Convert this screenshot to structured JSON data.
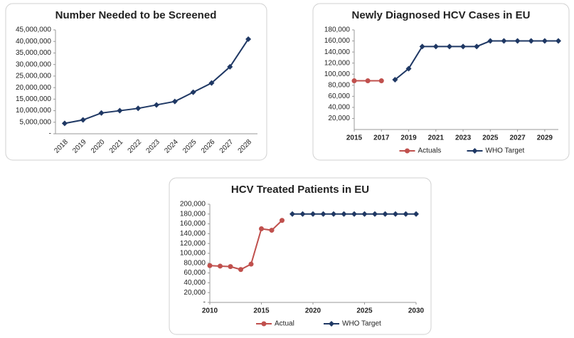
{
  "chart_data": [
    {
      "type": "line",
      "title": "Number Needed to be Screened",
      "categories": [
        "2018",
        "2019",
        "2020",
        "2021",
        "2022",
        "2023",
        "2024",
        "2025",
        "2026",
        "2027",
        "2028"
      ],
      "values": [
        4500000,
        6000000,
        9000000,
        10000000,
        11000000,
        12500000,
        14000000,
        18000000,
        22000000,
        29000000,
        41000000
      ],
      "color": "#1f3864",
      "ylim": [
        0,
        45000000
      ],
      "yticks": [
        {
          "value": 0,
          "label": "-"
        },
        {
          "value": 5000000,
          "label": "5,000,000"
        },
        {
          "value": 10000000,
          "label": "10,000,000"
        },
        {
          "value": 15000000,
          "label": "15,000,000"
        },
        {
          "value": 20000000,
          "label": "20,000,000"
        },
        {
          "value": 25000000,
          "label": "25,000,000"
        },
        {
          "value": 30000000,
          "label": "30,000,000"
        },
        {
          "value": 35000000,
          "label": "35,000,000"
        },
        {
          "value": 40000000,
          "label": "40,000,000"
        },
        {
          "value": 45000000,
          "label": "45,000,000"
        }
      ]
    },
    {
      "type": "line",
      "title": "Newly Diagnosed HCV Cases in EU",
      "series": [
        {
          "name": "Actuals",
          "color": "#c0504d",
          "marker": "circle",
          "x": [
            2015,
            2016,
            2017
          ],
          "values": [
            88000,
            88000,
            88000
          ]
        },
        {
          "name": "WHO Target",
          "color": "#1f3864",
          "marker": "diamond",
          "x": [
            2018,
            2019,
            2020,
            2021,
            2022,
            2023,
            2024,
            2025,
            2026,
            2027,
            2028,
            2029,
            2030
          ],
          "values": [
            90000,
            110000,
            150000,
            150000,
            150000,
            150000,
            150000,
            160000,
            160000,
            160000,
            160000,
            160000,
            160000
          ]
        }
      ],
      "xlim": [
        2015,
        2030
      ],
      "xticks": [
        2015,
        2017,
        2019,
        2021,
        2023,
        2025,
        2027,
        2029
      ],
      "ylim": [
        0,
        180000
      ],
      "yticks": [
        {
          "value": 20000,
          "label": "20,000"
        },
        {
          "value": 40000,
          "label": "40,000"
        },
        {
          "value": 60000,
          "label": "60,000"
        },
        {
          "value": 80000,
          "label": "80,000"
        },
        {
          "value": 100000,
          "label": "100,000"
        },
        {
          "value": 120000,
          "label": "120,000"
        },
        {
          "value": 140000,
          "label": "140,000"
        },
        {
          "value": 160000,
          "label": "160,000"
        },
        {
          "value": 180000,
          "label": "180,000"
        }
      ],
      "legend": "bottom"
    },
    {
      "type": "line",
      "title": "HCV Treated Patients in EU",
      "series": [
        {
          "name": "Actual",
          "color": "#c0504d",
          "marker": "circle",
          "x": [
            2010,
            2011,
            2012,
            2013,
            2014,
            2015,
            2016,
            2017
          ],
          "values": [
            75000,
            74000,
            73000,
            67000,
            78000,
            150000,
            147000,
            167000
          ]
        },
        {
          "name": "WHO Target",
          "color": "#1f3864",
          "marker": "diamond",
          "x": [
            2018,
            2019,
            2020,
            2021,
            2022,
            2023,
            2024,
            2025,
            2026,
            2027,
            2028,
            2029,
            2030
          ],
          "values": [
            180000,
            180000,
            180000,
            180000,
            180000,
            180000,
            180000,
            180000,
            180000,
            180000,
            180000,
            180000,
            180000
          ]
        }
      ],
      "xlim": [
        2010,
        2030
      ],
      "xticks": [
        2010,
        2015,
        2020,
        2025,
        2030
      ],
      "ylim": [
        0,
        200000
      ],
      "yticks": [
        {
          "value": 0,
          "label": "-"
        },
        {
          "value": 20000,
          "label": "20,000"
        },
        {
          "value": 40000,
          "label": "40,000"
        },
        {
          "value": 60000,
          "label": "60,000"
        },
        {
          "value": 80000,
          "label": "80,000"
        },
        {
          "value": 100000,
          "label": "100,000"
        },
        {
          "value": 120000,
          "label": "120,000"
        },
        {
          "value": 140000,
          "label": "140,000"
        },
        {
          "value": 160000,
          "label": "160,000"
        },
        {
          "value": 180000,
          "label": "180,000"
        },
        {
          "value": 200000,
          "label": "200,000"
        }
      ],
      "legend": "bottom"
    }
  ]
}
